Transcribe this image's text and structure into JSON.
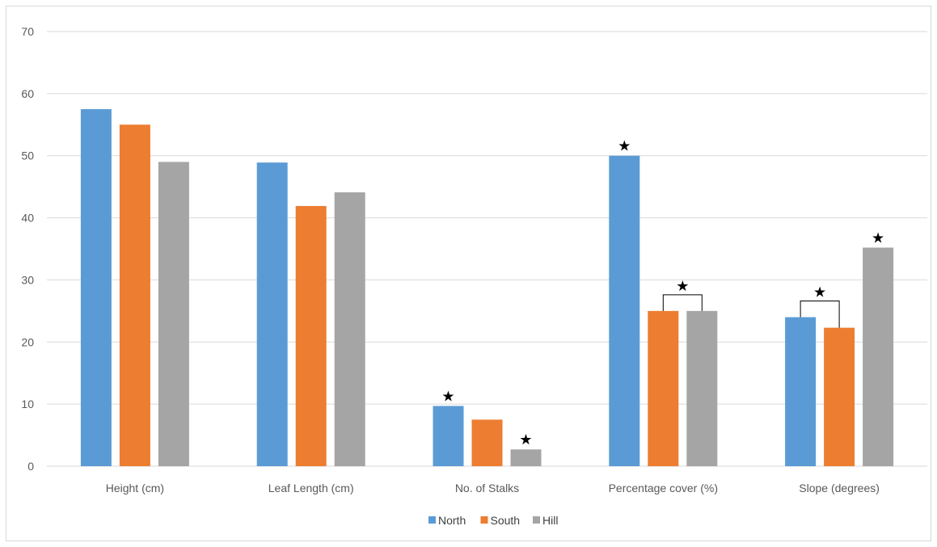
{
  "chart_data": {
    "type": "bar",
    "categories": [
      "Height (cm)",
      "Leaf Length (cm)",
      "No. of Stalks",
      "Percentage cover (%)",
      "Slope (degrees)"
    ],
    "series": [
      {
        "name": "North",
        "values": [
          57.5,
          48.9,
          9.7,
          50.0,
          24.0
        ]
      },
      {
        "name": "South",
        "values": [
          55.0,
          41.9,
          7.5,
          25.0,
          22.3
        ]
      },
      {
        "name": "Hill",
        "values": [
          49.0,
          44.1,
          2.7,
          25.0,
          35.2
        ]
      }
    ],
    "ylim": [
      0,
      70
    ],
    "yticks": [
      0,
      10,
      20,
      30,
      40,
      50,
      60,
      70
    ],
    "grid": true,
    "legend_position": "bottom",
    "colors": {
      "North": "#5b9bd5",
      "South": "#ed7d31",
      "Hill": "#a5a5a5"
    },
    "annotations": {
      "star_symbol": "★",
      "single_stars": [
        {
          "category": "No. of Stalks",
          "series": "North"
        },
        {
          "category": "No. of Stalks",
          "series": "Hill"
        },
        {
          "category": "Percentage cover (%)",
          "series": "North"
        },
        {
          "category": "Slope (degrees)",
          "series": "Hill"
        }
      ],
      "bracket_stars": [
        {
          "category": "Percentage cover (%)",
          "from_series": "South",
          "to_series": "Hill"
        },
        {
          "category": "Slope (degrees)",
          "from_series": "North",
          "to_series": "South"
        }
      ]
    }
  }
}
